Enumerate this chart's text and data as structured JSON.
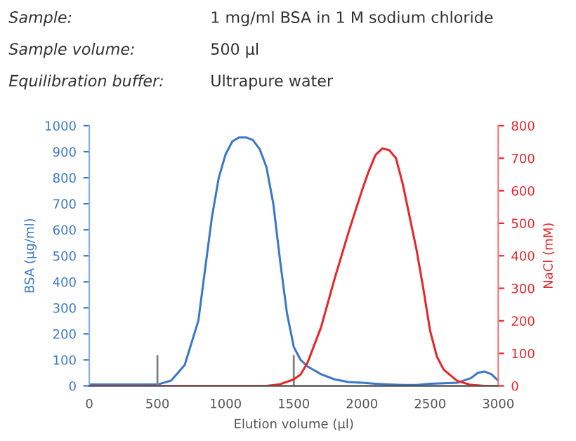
{
  "chart_data": {
    "type": "line",
    "annotations": [
      "Sample:",
      "1 mg/ml BSA in 1 M sodium chloride",
      "Sample volume:",
      "500 µl",
      "Equilibration buffer:",
      "Ultrapure water"
    ],
    "xlabel": "Elution volume (µl)",
    "ylabel": "BSA (µg/ml)",
    "y2label": "NaCl (mM)",
    "xlim": [
      0,
      3000
    ],
    "xticks": [
      0,
      500,
      1000,
      1500,
      2000,
      2500,
      3000
    ],
    "ylim": [
      0,
      1000
    ],
    "yticks": [
      0,
      100,
      200,
      300,
      400,
      500,
      600,
      700,
      800,
      900,
      1000
    ],
    "y2lim": [
      0,
      800
    ],
    "y2ticks": [
      0,
      100,
      200,
      300,
      400,
      500,
      600,
      700,
      800
    ],
    "ref_lines": [
      {
        "axis": "x",
        "value": 500,
        "color": "#808080"
      },
      {
        "axis": "x",
        "value": 1500,
        "color": "#808080"
      }
    ],
    "series": [
      {
        "color": "#3a78c9",
        "x": [
          0,
          500,
          600,
          700,
          800,
          850,
          900,
          950,
          1000,
          1050,
          1100,
          1150,
          1200,
          1250,
          1300,
          1350,
          1400,
          1450,
          1500,
          1550,
          1600,
          1700,
          1800,
          1900,
          2000,
          2100,
          2200,
          2300,
          2400,
          2500,
          2600,
          2700,
          2800,
          2850,
          2900,
          2950,
          3000
        ],
        "values": [
          5,
          5,
          20,
          80,
          250,
          450,
          650,
          800,
          890,
          940,
          955,
          955,
          945,
          910,
          840,
          700,
          480,
          280,
          150,
          100,
          75,
          45,
          25,
          15,
          12,
          8,
          5,
          3,
          3,
          8,
          10,
          12,
          30,
          50,
          55,
          45,
          20
        ]
      },
      {
        "color": "#e8262a",
        "axis": "y2",
        "x": [
          0,
          1300,
          1400,
          1500,
          1550,
          1600,
          1700,
          1800,
          1900,
          2000,
          2050,
          2100,
          2150,
          2200,
          2250,
          2300,
          2400,
          2450,
          2500,
          2550,
          2600,
          2700,
          2800,
          2900,
          3000
        ],
        "values": [
          0,
          0,
          5,
          20,
          35,
          70,
          180,
          330,
          470,
          600,
          660,
          710,
          730,
          725,
          700,
          620,
          420,
          300,
          170,
          90,
          50,
          15,
          3,
          0,
          0
        ]
      }
    ]
  }
}
